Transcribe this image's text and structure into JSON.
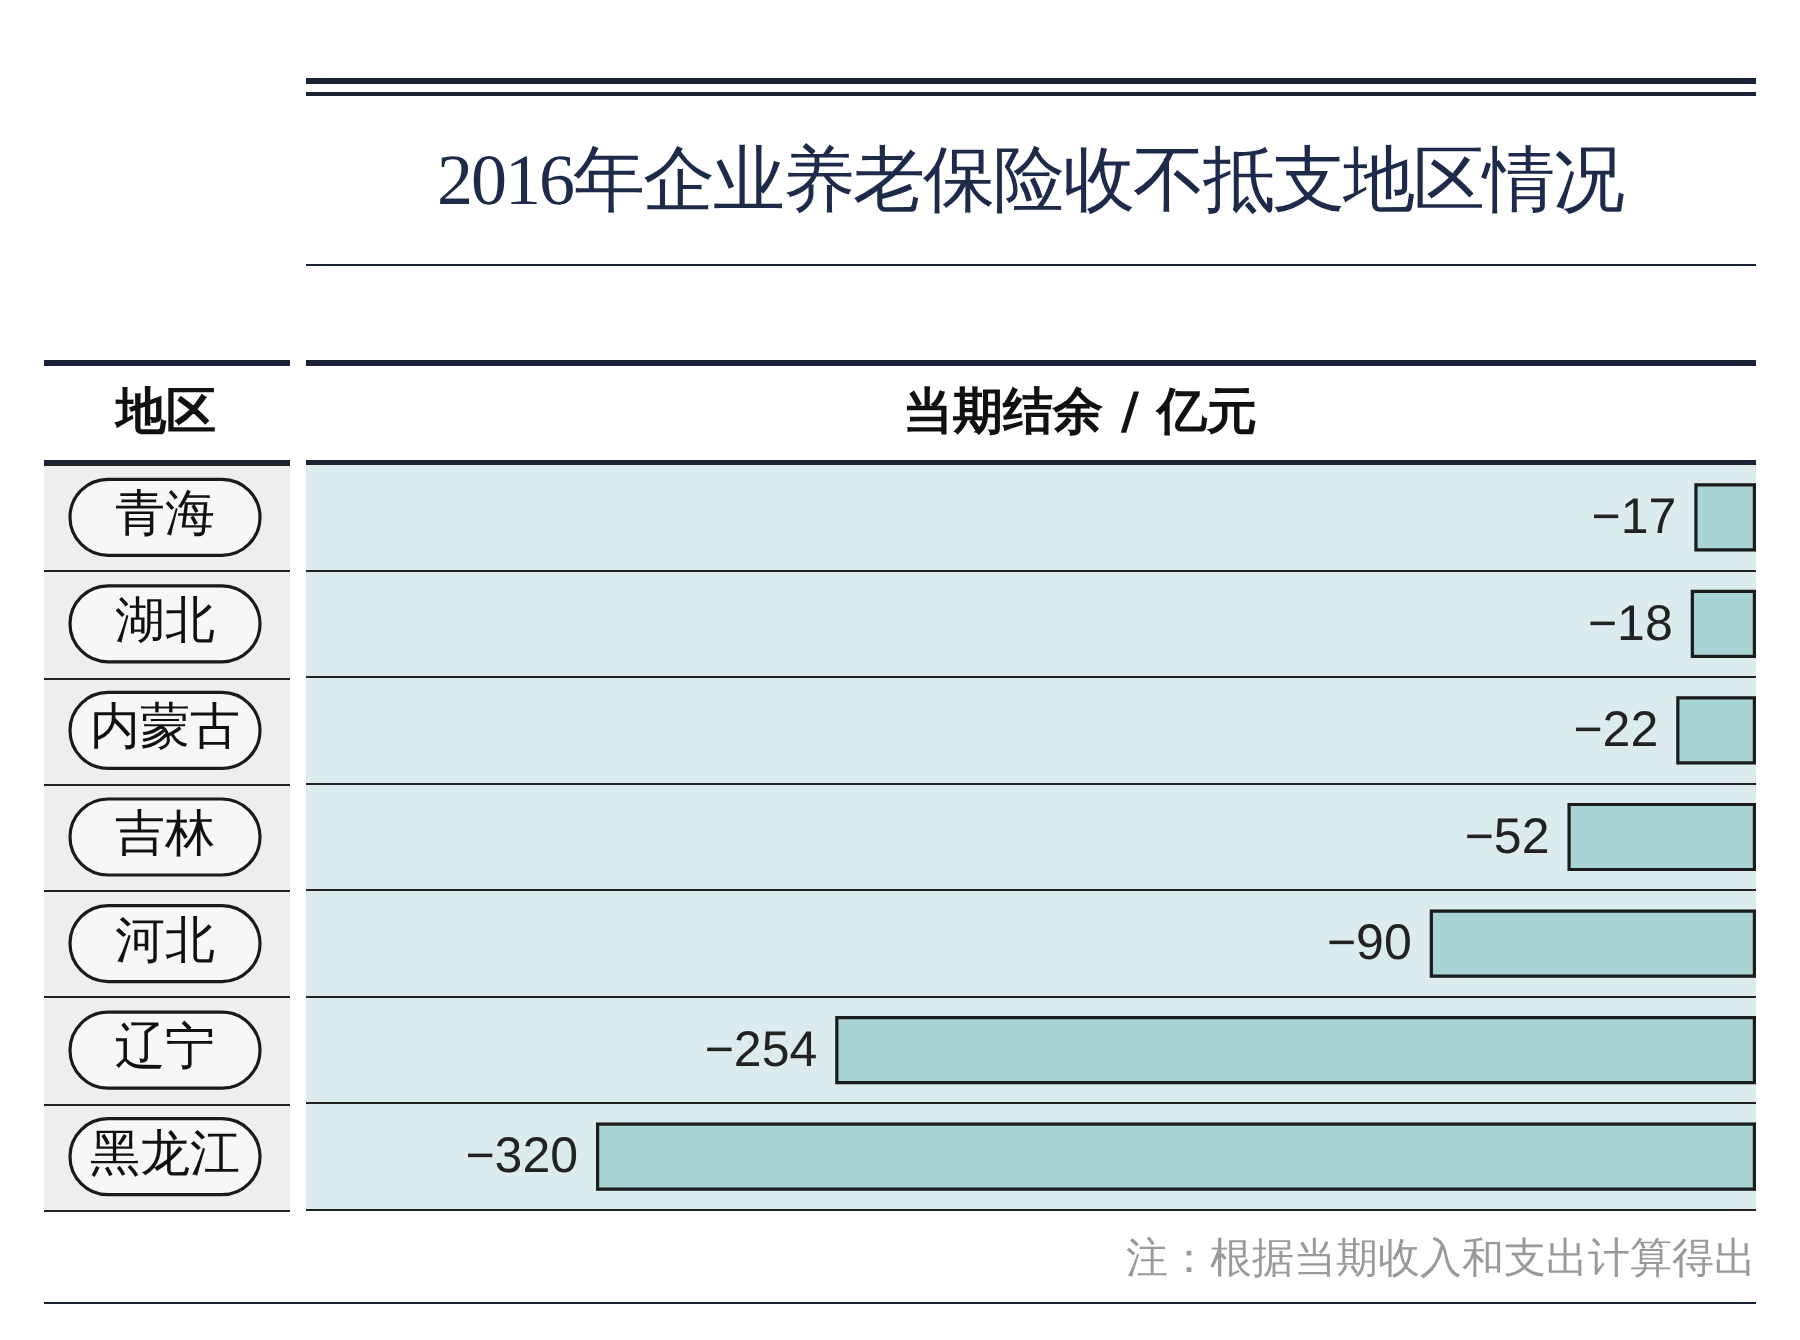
{
  "chart_data": {
    "type": "bar",
    "orientation": "horizontal",
    "title": "2016年企业养老保险收不抵支地区情况",
    "xlabel": "当期结余 / 亿元",
    "ylabel": "地区",
    "categories": [
      "青海",
      "湖北",
      "内蒙古",
      "吉林",
      "河北",
      "辽宁",
      "黑龙江"
    ],
    "values": [
      -17,
      -18,
      -22,
      -52,
      -90,
      -254,
      -320
    ],
    "color": "#a8d5d3",
    "data_labels": true,
    "grid": "y",
    "tick_labels": "y",
    "annotations": [
      "注：根据当期收入和支出计算得出"
    ]
  }
}
